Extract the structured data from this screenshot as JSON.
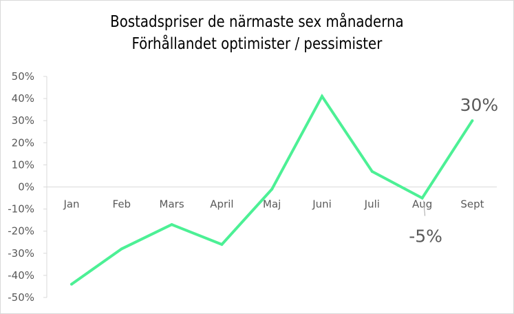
{
  "chart_data": {
    "type": "line",
    "title": "Bostadspriser de närmaste sex månaderna",
    "subtitle": "Förhållandet optimister / pessimister",
    "categories": [
      "Jan",
      "Feb",
      "Mars",
      "April",
      "Maj",
      "Juni",
      "Juli",
      "Aug",
      "Sept"
    ],
    "series": [
      {
        "values": [
          -44,
          -28,
          -17,
          -26,
          -1,
          41,
          7,
          -5,
          30
        ]
      }
    ],
    "data_labels": [
      {
        "category": "Aug",
        "text": "-5%"
      },
      {
        "category": "Sept",
        "text": "30%"
      }
    ],
    "ylim": [
      -50,
      50
    ],
    "yticks": [
      "50%",
      "40%",
      "30%",
      "20%",
      "10%",
      "0%",
      "-10%",
      "-20%",
      "-30%",
      "-40%",
      "-50%"
    ],
    "y_tick_values": [
      50,
      40,
      30,
      20,
      10,
      0,
      -10,
      -20,
      -30,
      -40,
      -50
    ],
    "grid": false,
    "legend": "none",
    "line_color": "#4cf095",
    "axis_color": "#d9d9d9"
  }
}
